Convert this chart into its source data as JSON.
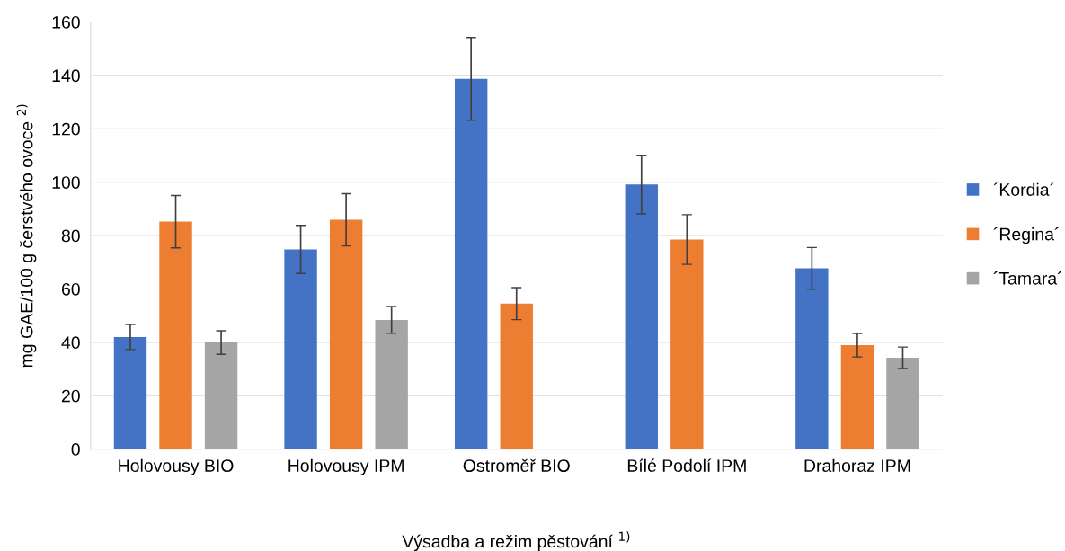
{
  "chart_data": {
    "type": "bar",
    "xlabel": "Výsadba a režim pěstování $^{1)}$",
    "ylabel": "mg GAE/100 g čerstvého ovoce $^{2)}$",
    "categories": [
      "Holovousy BIO",
      "Holovousy IPM",
      "Ostroměř BIO",
      "Bílé Podolí IPM",
      "Drahoraz IPM"
    ],
    "series": [
      {
        "name": "´Kordia´",
        "color": "#4472c4",
        "values": [
          42,
          74.8,
          138.7,
          99.1,
          67.7
        ],
        "errors": [
          4.7,
          9,
          15.5,
          11,
          7.8
        ]
      },
      {
        "name": "´Regina´",
        "color": "#ed7d31",
        "values": [
          85.2,
          85.9,
          54.5,
          78.5,
          38.9
        ],
        "errors": [
          9.8,
          9.8,
          6,
          9.3,
          4.4
        ]
      },
      {
        "name": "´Tamara´",
        "color": "#a5a5a5",
        "values": [
          39.9,
          48.4,
          null,
          null,
          34.2
        ],
        "errors": [
          4.4,
          5,
          null,
          null,
          4
        ]
      }
    ],
    "ylim": [
      0,
      160
    ],
    "yticks": [
      0,
      20,
      40,
      60,
      80,
      100,
      120,
      140,
      160
    ],
    "grid": "y",
    "legend": "right"
  }
}
